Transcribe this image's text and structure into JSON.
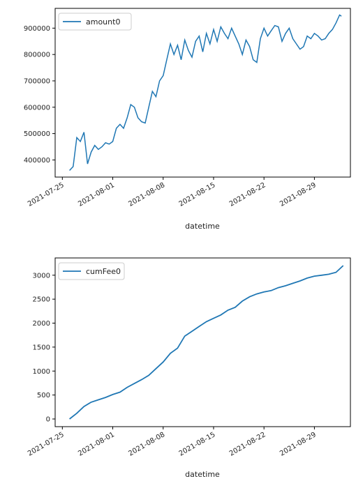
{
  "colors": {
    "line": "#1f77b4",
    "axis": "#000000",
    "legend_border": "#cccccc"
  },
  "chart_data": [
    {
      "type": "line",
      "xlabel": "datetime",
      "ylabel": "",
      "legend": {
        "placement": "top-left"
      },
      "grid": false,
      "x_ticks": [
        "2021-07-25",
        "2021-08-01",
        "2021-08-08",
        "2021-08-15",
        "2021-08-22",
        "2021-08-29"
      ],
      "y_ticks": [
        "400000",
        "500000",
        "600000",
        "700000",
        "800000",
        "900000"
      ],
      "xlim": [
        "2021-07-24",
        "2021-09-03"
      ],
      "ylim": [
        335000,
        975000
      ],
      "series": [
        {
          "name": "amount0",
          "x": [
            "2021-07-26T00:00",
            "2021-07-26T12:00",
            "2021-07-27T00:00",
            "2021-07-27T12:00",
            "2021-07-28T00:00",
            "2021-07-28T12:00",
            "2021-07-29T00:00",
            "2021-07-29T12:00",
            "2021-07-30T00:00",
            "2021-07-30T12:00",
            "2021-07-31T00:00",
            "2021-07-31T12:00",
            "2021-08-01T00:00",
            "2021-08-01T12:00",
            "2021-08-02T00:00",
            "2021-08-02T12:00",
            "2021-08-03T00:00",
            "2021-08-03T12:00",
            "2021-08-04T00:00",
            "2021-08-04T12:00",
            "2021-08-05T00:00",
            "2021-08-05T12:00",
            "2021-08-06T00:00",
            "2021-08-06T12:00",
            "2021-08-07T00:00",
            "2021-08-07T12:00",
            "2021-08-08T00:00",
            "2021-08-08T12:00",
            "2021-08-09T00:00",
            "2021-08-09T12:00",
            "2021-08-10T00:00",
            "2021-08-10T12:00",
            "2021-08-11T00:00",
            "2021-08-11T12:00",
            "2021-08-12T00:00",
            "2021-08-12T12:00",
            "2021-08-13T00:00",
            "2021-08-13T12:00",
            "2021-08-14T00:00",
            "2021-08-14T12:00",
            "2021-08-15T00:00",
            "2021-08-15T12:00",
            "2021-08-16T00:00",
            "2021-08-16T12:00",
            "2021-08-17T00:00",
            "2021-08-17T12:00",
            "2021-08-18T00:00",
            "2021-08-18T12:00",
            "2021-08-19T00:00",
            "2021-08-19T12:00",
            "2021-08-20T00:00",
            "2021-08-20T12:00",
            "2021-08-21T00:00",
            "2021-08-21T12:00",
            "2021-08-22T00:00",
            "2021-08-22T12:00",
            "2021-08-23T00:00",
            "2021-08-23T12:00",
            "2021-08-24T00:00",
            "2021-08-24T12:00",
            "2021-08-25T00:00",
            "2021-08-25T12:00",
            "2021-08-26T00:00",
            "2021-08-26T12:00",
            "2021-08-27T00:00",
            "2021-08-27T12:00",
            "2021-08-28T00:00",
            "2021-08-28T12:00",
            "2021-08-29T00:00",
            "2021-08-29T12:00",
            "2021-08-30T00:00",
            "2021-08-30T12:00",
            "2021-08-31T00:00",
            "2021-08-31T12:00",
            "2021-09-01T00:00",
            "2021-09-01T12:00",
            "2021-09-01T18:00"
          ],
          "values": [
            360000,
            375000,
            485000,
            470000,
            505000,
            385000,
            430000,
            455000,
            440000,
            450000,
            465000,
            460000,
            470000,
            520000,
            535000,
            520000,
            560000,
            610000,
            600000,
            560000,
            545000,
            540000,
            600000,
            660000,
            640000,
            700000,
            720000,
            780000,
            840000,
            800000,
            835000,
            780000,
            855000,
            815000,
            790000,
            850000,
            870000,
            810000,
            880000,
            840000,
            895000,
            850000,
            905000,
            880000,
            860000,
            900000,
            870000,
            840000,
            800000,
            855000,
            830000,
            780000,
            770000,
            860000,
            900000,
            870000,
            890000,
            910000,
            905000,
            850000,
            880000,
            900000,
            860000,
            840000,
            820000,
            830000,
            870000,
            860000,
            880000,
            870000,
            855000,
            860000,
            880000,
            895000,
            920000,
            950000,
            945000
          ]
        }
      ]
    },
    {
      "type": "line",
      "xlabel": "datetime",
      "ylabel": "",
      "legend": {
        "placement": "top-left"
      },
      "grid": false,
      "x_ticks": [
        "2021-07-25",
        "2021-08-01",
        "2021-08-08",
        "2021-08-15",
        "2021-08-22",
        "2021-08-29"
      ],
      "y_ticks": [
        "0",
        "500",
        "1000",
        "1500",
        "2000",
        "2500",
        "3000"
      ],
      "xlim": [
        "2021-07-24",
        "2021-09-03"
      ],
      "ylim": [
        -160,
        3360
      ],
      "series": [
        {
          "name": "cumFee0",
          "x": [
            "2021-07-26",
            "2021-07-27",
            "2021-07-28",
            "2021-07-29",
            "2021-07-30",
            "2021-07-31",
            "2021-08-01",
            "2021-08-02",
            "2021-08-03",
            "2021-08-04",
            "2021-08-05",
            "2021-08-06",
            "2021-08-07",
            "2021-08-08",
            "2021-08-09",
            "2021-08-10",
            "2021-08-11",
            "2021-08-12",
            "2021-08-13",
            "2021-08-14",
            "2021-08-15",
            "2021-08-16",
            "2021-08-17",
            "2021-08-18",
            "2021-08-19",
            "2021-08-20",
            "2021-08-21",
            "2021-08-22",
            "2021-08-23",
            "2021-08-24",
            "2021-08-25",
            "2021-08-26",
            "2021-08-27",
            "2021-08-28",
            "2021-08-29",
            "2021-08-30",
            "2021-08-31",
            "2021-09-01",
            "2021-09-02"
          ],
          "values": [
            0,
            120,
            260,
            350,
            400,
            450,
            510,
            560,
            660,
            740,
            820,
            910,
            1050,
            1190,
            1370,
            1480,
            1730,
            1830,
            1930,
            2030,
            2100,
            2170,
            2270,
            2330,
            2460,
            2550,
            2610,
            2650,
            2680,
            2740,
            2780,
            2830,
            2880,
            2940,
            2980,
            3000,
            3020,
            3060,
            3200
          ]
        }
      ]
    }
  ]
}
